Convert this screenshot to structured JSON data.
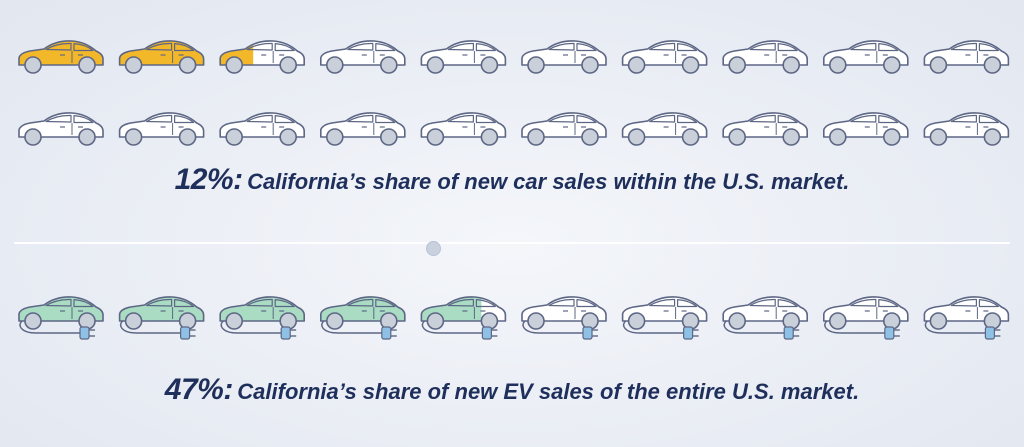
{
  "chart_data": [
    {
      "type": "pictogram",
      "unit_count": 20,
      "value_percent": 12,
      "fill_color": "#f3b82a",
      "empty_color": "#ffffff",
      "outline_color": "#5d6785",
      "wheel_color": "#c9d0da",
      "icon": "car-icon",
      "caption_value": "12%:",
      "caption_text": "California’s share of new car sales within the U.S. market."
    },
    {
      "type": "pictogram",
      "unit_count": 10,
      "value_percent": 47,
      "fill_color": "#a9dcc3",
      "empty_color": "#ffffff",
      "outline_color": "#5d6785",
      "wheel_color": "#c9d0da",
      "plug_color": "#8fc1e6",
      "icon": "electric-car-icon",
      "caption_value": "47%:",
      "caption_text": "California’s share of new EV sales of the entire U.S. market."
    }
  ]
}
